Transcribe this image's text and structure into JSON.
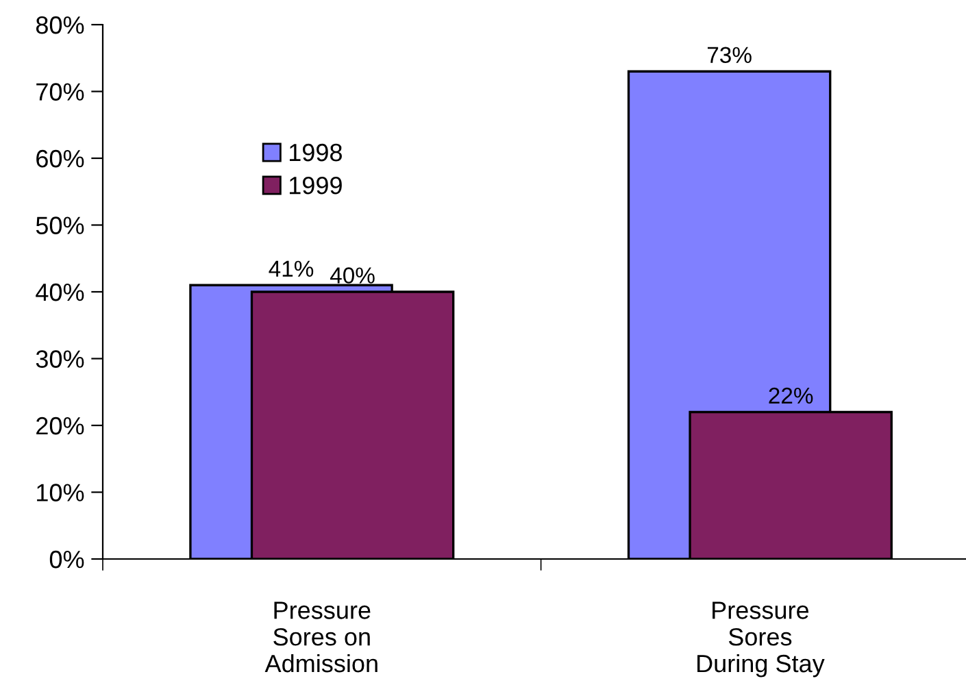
{
  "chart_data": {
    "type": "bar",
    "categories": [
      "Pressure\nSores on\nAdmission",
      "Pressure\nSores\nDuring Stay"
    ],
    "series": [
      {
        "name": "1998",
        "color": "#8080ff",
        "values": [
          41,
          73
        ],
        "value_labels": [
          "41%",
          "73%"
        ]
      },
      {
        "name": "1999",
        "color": "#802060",
        "values": [
          40,
          22
        ],
        "value_labels": [
          "40%",
          "22%"
        ]
      }
    ],
    "ylim": [
      0,
      80
    ],
    "yticks": [
      {
        "value": 0,
        "label": "0%"
      },
      {
        "value": 10,
        "label": "10%"
      },
      {
        "value": 20,
        "label": "20%"
      },
      {
        "value": 30,
        "label": "30%"
      },
      {
        "value": 40,
        "label": "40%"
      },
      {
        "value": 50,
        "label": "50%"
      },
      {
        "value": 60,
        "label": "60%"
      },
      {
        "value": 70,
        "label": "70%"
      },
      {
        "value": 80,
        "label": "80%"
      }
    ],
    "grid": false,
    "legend": "top left"
  }
}
